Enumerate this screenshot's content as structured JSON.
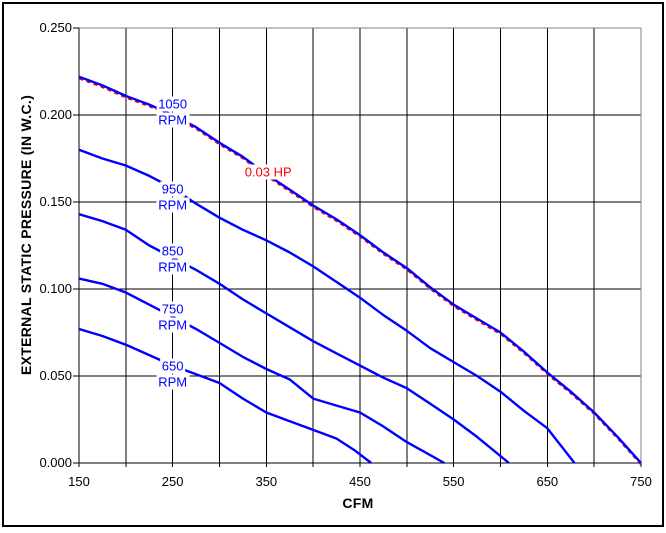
{
  "figure": {
    "background": "#FFFFFF",
    "border_color": "#000000"
  },
  "chart_data": {
    "type": "line",
    "title": "",
    "xlabel": "CFM",
    "ylabel": "EXTERNAL STATIC PRESSURE (IN W.C.)",
    "xlim": [
      150,
      750
    ],
    "ylim": [
      0,
      0.25
    ],
    "x_tick_values": [
      150,
      250,
      350,
      450,
      550,
      650,
      750
    ],
    "x_tick_labels": [
      "150",
      "250",
      "350",
      "450",
      "550",
      "650",
      "750"
    ],
    "y_tick_values": [
      0.25,
      0.2,
      0.15,
      0.1,
      0.05,
      0.0
    ],
    "y_tick_labels": [
      "0.250",
      "0.200",
      "0.150",
      "0.100",
      "0.050",
      "0.000"
    ],
    "x_grid_step": 50,
    "y_grid_step": 0.05,
    "grid_on": true,
    "grid_color": "#000000",
    "plot_border_color": "#808080",
    "legend_position": "none",
    "series": [
      {
        "name": "0.03 HP",
        "label_lines": [
          "0.03 HP"
        ],
        "label_anchor": {
          "cfm": 352,
          "pressure": 0.167
        },
        "color": "#FF0000",
        "style": "dashed",
        "points": [
          [
            150,
            0.222
          ],
          [
            175,
            0.217
          ],
          [
            200,
            0.211
          ],
          [
            225,
            0.206
          ],
          [
            250,
            0.2
          ],
          [
            275,
            0.193
          ],
          [
            300,
            0.184
          ],
          [
            325,
            0.176
          ],
          [
            350,
            0.166
          ],
          [
            375,
            0.157
          ],
          [
            400,
            0.148
          ],
          [
            425,
            0.14
          ],
          [
            450,
            0.131
          ],
          [
            475,
            0.121
          ],
          [
            500,
            0.112
          ],
          [
            525,
            0.101
          ],
          [
            550,
            0.091
          ],
          [
            575,
            0.083
          ],
          [
            600,
            0.075
          ],
          [
            625,
            0.064
          ],
          [
            650,
            0.052
          ],
          [
            675,
            0.041
          ],
          [
            700,
            0.029
          ],
          [
            725,
            0.015
          ],
          [
            750,
            0.0
          ]
        ]
      },
      {
        "name": "1050 RPM",
        "label_lines": [
          "1050",
          "RPM"
        ],
        "label_anchor": {
          "cfm": 250,
          "pressure": 0.202
        },
        "color": "#0000FF",
        "style": "solid",
        "points": [
          [
            150,
            0.222
          ],
          [
            175,
            0.217
          ],
          [
            200,
            0.211
          ],
          [
            225,
            0.206
          ],
          [
            250,
            0.2
          ],
          [
            275,
            0.193
          ],
          [
            300,
            0.184
          ],
          [
            325,
            0.176
          ],
          [
            350,
            0.166
          ],
          [
            375,
            0.157
          ],
          [
            400,
            0.148
          ],
          [
            425,
            0.14
          ],
          [
            450,
            0.131
          ],
          [
            475,
            0.121
          ],
          [
            500,
            0.112
          ],
          [
            525,
            0.101
          ],
          [
            550,
            0.091
          ],
          [
            575,
            0.083
          ],
          [
            600,
            0.075
          ],
          [
            625,
            0.064
          ],
          [
            650,
            0.052
          ],
          [
            675,
            0.041
          ],
          [
            700,
            0.029
          ],
          [
            725,
            0.015
          ],
          [
            750,
            0.0
          ]
        ]
      },
      {
        "name": "950 RPM",
        "label_lines": [
          "950",
          "RPM"
        ],
        "label_anchor": {
          "cfm": 250,
          "pressure": 0.153
        },
        "color": "#0000FF",
        "style": "solid",
        "points": [
          [
            150,
            0.18
          ],
          [
            175,
            0.175
          ],
          [
            200,
            0.171
          ],
          [
            225,
            0.165
          ],
          [
            250,
            0.158
          ],
          [
            275,
            0.149
          ],
          [
            300,
            0.141
          ],
          [
            325,
            0.134
          ],
          [
            350,
            0.128
          ],
          [
            375,
            0.121
          ],
          [
            400,
            0.113
          ],
          [
            425,
            0.104
          ],
          [
            450,
            0.095
          ],
          [
            475,
            0.085
          ],
          [
            500,
            0.076
          ],
          [
            525,
            0.066
          ],
          [
            550,
            0.058
          ],
          [
            575,
            0.05
          ],
          [
            600,
            0.041
          ],
          [
            625,
            0.03
          ],
          [
            650,
            0.02
          ],
          [
            679,
            0.0
          ]
        ]
      },
      {
        "name": "850 RPM",
        "label_lines": [
          "850",
          "RPM"
        ],
        "label_anchor": {
          "cfm": 250,
          "pressure": 0.117
        },
        "color": "#0000FF",
        "style": "solid",
        "points": [
          [
            150,
            0.143
          ],
          [
            175,
            0.139
          ],
          [
            200,
            0.134
          ],
          [
            225,
            0.125
          ],
          [
            250,
            0.118
          ],
          [
            275,
            0.111
          ],
          [
            300,
            0.103
          ],
          [
            325,
            0.094
          ],
          [
            350,
            0.086
          ],
          [
            375,
            0.078
          ],
          [
            400,
            0.07
          ],
          [
            425,
            0.063
          ],
          [
            450,
            0.056
          ],
          [
            475,
            0.049
          ],
          [
            500,
            0.043
          ],
          [
            525,
            0.034
          ],
          [
            550,
            0.025
          ],
          [
            575,
            0.015
          ],
          [
            609,
            0.0
          ]
        ]
      },
      {
        "name": "750 RPM",
        "label_lines": [
          "750",
          "RPM"
        ],
        "label_anchor": {
          "cfm": 250,
          "pressure": 0.084
        },
        "color": "#0000FF",
        "style": "solid",
        "points": [
          [
            150,
            0.106
          ],
          [
            175,
            0.103
          ],
          [
            200,
            0.098
          ],
          [
            225,
            0.091
          ],
          [
            250,
            0.084
          ],
          [
            275,
            0.077
          ],
          [
            300,
            0.069
          ],
          [
            325,
            0.061
          ],
          [
            350,
            0.054
          ],
          [
            375,
            0.048
          ],
          [
            400,
            0.037
          ],
          [
            425,
            0.033
          ],
          [
            450,
            0.029
          ],
          [
            475,
            0.021
          ],
          [
            500,
            0.012
          ],
          [
            540,
            0.0
          ]
        ]
      },
      {
        "name": "650 RPM",
        "label_lines": [
          "650",
          "RPM"
        ],
        "label_anchor": {
          "cfm": 250,
          "pressure": 0.051
        },
        "color": "#0000FF",
        "style": "solid",
        "points": [
          [
            150,
            0.077
          ],
          [
            175,
            0.073
          ],
          [
            200,
            0.068
          ],
          [
            225,
            0.062
          ],
          [
            250,
            0.056
          ],
          [
            275,
            0.051
          ],
          [
            300,
            0.046
          ],
          [
            325,
            0.037
          ],
          [
            350,
            0.029
          ],
          [
            375,
            0.024
          ],
          [
            400,
            0.019
          ],
          [
            425,
            0.014
          ],
          [
            445,
            0.007
          ],
          [
            462,
            0.0
          ]
        ]
      }
    ]
  }
}
